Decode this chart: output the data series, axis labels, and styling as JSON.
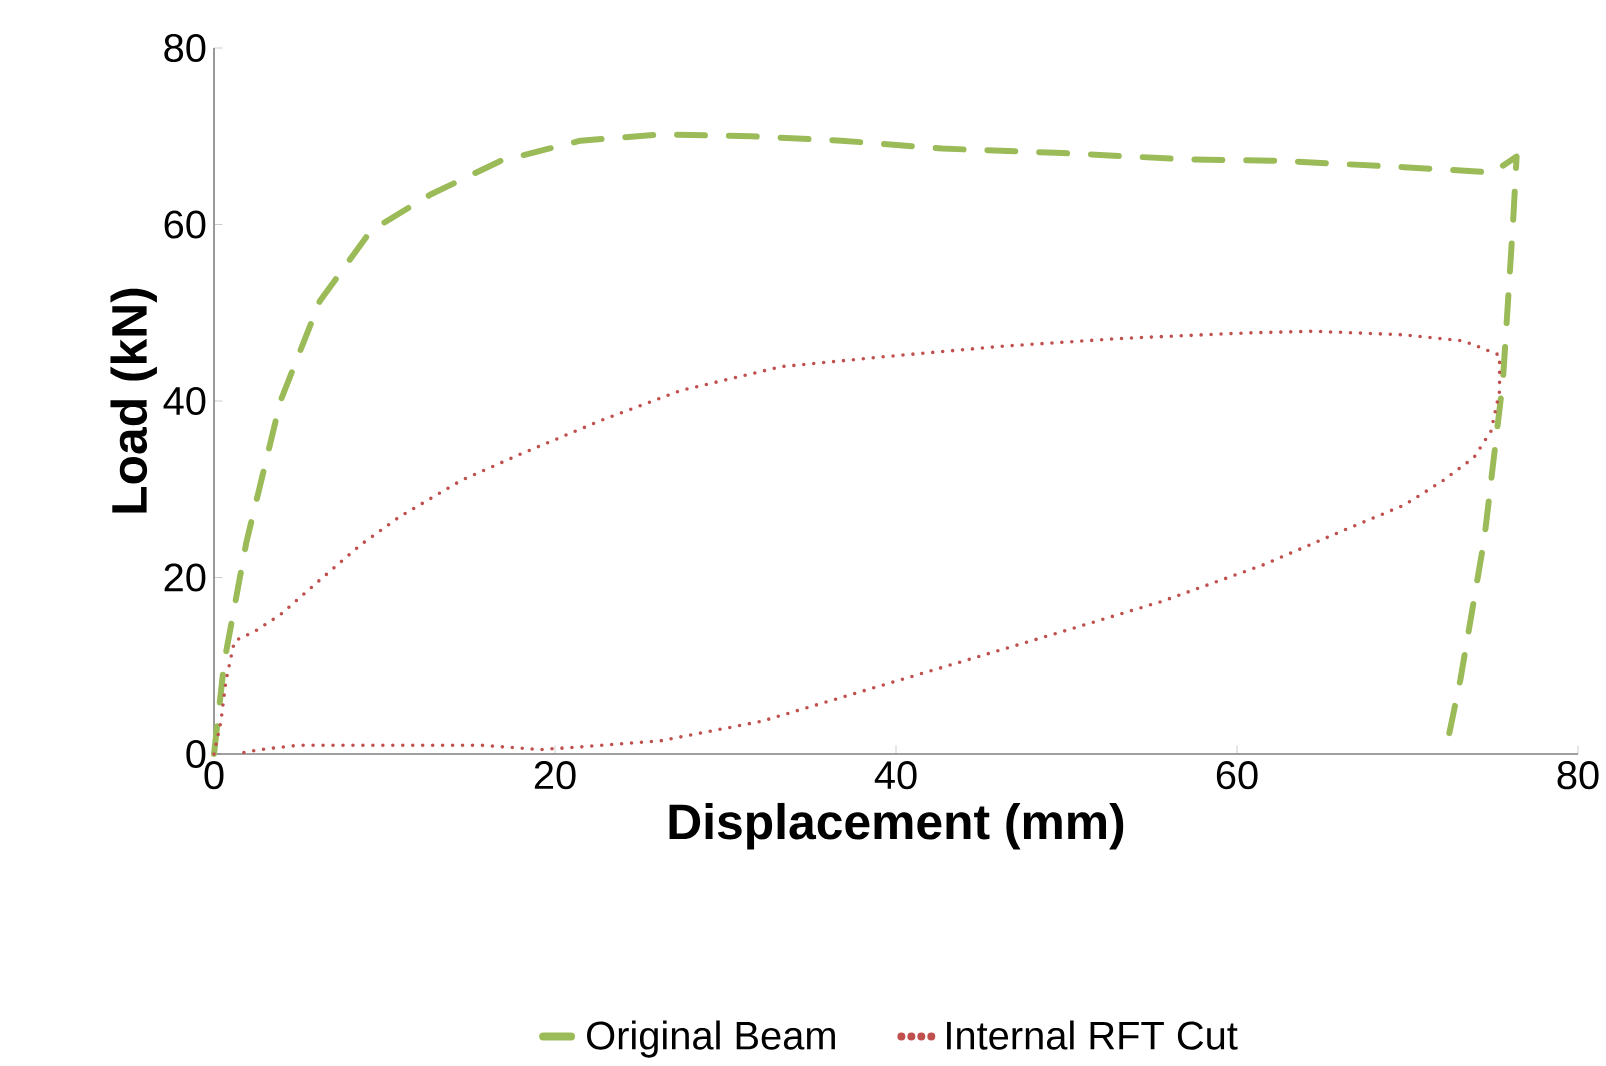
{
  "chart_data": {
    "type": "line",
    "xlabel": "Displacement (mm)",
    "ylabel": "Load (kN)",
    "xlim": [
      0,
      80
    ],
    "ylim": [
      0,
      80
    ],
    "xticks": [
      0,
      20,
      40,
      60,
      80
    ],
    "yticks": [
      0,
      20,
      40,
      60,
      80
    ],
    "legend": "bottom",
    "grid": false,
    "series": [
      {
        "name": "Original Beam",
        "color": "#9bbb59",
        "line_style": "dashed",
        "x": [
          0,
          0.6,
          1.9,
          3.9,
          6.2,
          9.2,
          12.7,
          16.8,
          21.5,
          26.2,
          31.5,
          36.8,
          42.7,
          49.8,
          56.8,
          62.7,
          69.8,
          75,
          76.4,
          76.2,
          75.6,
          74.5,
          73.1,
          72.2
        ],
        "values": [
          0,
          10.4,
          24,
          40,
          51.3,
          59.3,
          63.4,
          67.2,
          69.5,
          70.2,
          70,
          69.5,
          68.6,
          68.1,
          67.4,
          67.2,
          66.5,
          65.9,
          67.7,
          60.5,
          42.4,
          24.3,
          8.4,
          0
        ]
      },
      {
        "name": "Internal RFT Cut",
        "color": "#c0504d",
        "line_style": "dotted",
        "x": [
          0,
          0.4,
          0.7,
          1.2,
          2.4,
          3.9,
          6.2,
          8.6,
          10.9,
          14.5,
          18,
          22.7,
          27.4,
          33.3,
          39.2,
          46.2,
          53.3,
          60.4,
          64.5,
          69.8,
          73.3,
          75.4,
          75.4,
          74.9,
          73.9,
          72.1,
          69.8,
          66.2,
          61.5,
          55.6,
          49.8,
          43.9,
          38,
          32.1,
          26.2,
          21.5,
          19.1,
          15.6,
          9.8,
          5,
          2.7,
          1.3
        ],
        "values": [
          0,
          3.6,
          8.3,
          12.8,
          13.9,
          15.8,
          19.7,
          23.7,
          26.9,
          31,
          34,
          37.8,
          41.2,
          43.9,
          45,
          46.2,
          47.1,
          47.7,
          47.9,
          47.5,
          46.8,
          45.2,
          41.1,
          36.6,
          33.6,
          31,
          28.2,
          25.3,
          21.4,
          17.3,
          13.9,
          10.5,
          7.1,
          3.7,
          1.5,
          0.8,
          0.5,
          1,
          1,
          1,
          0.5,
          0
        ]
      }
    ]
  }
}
